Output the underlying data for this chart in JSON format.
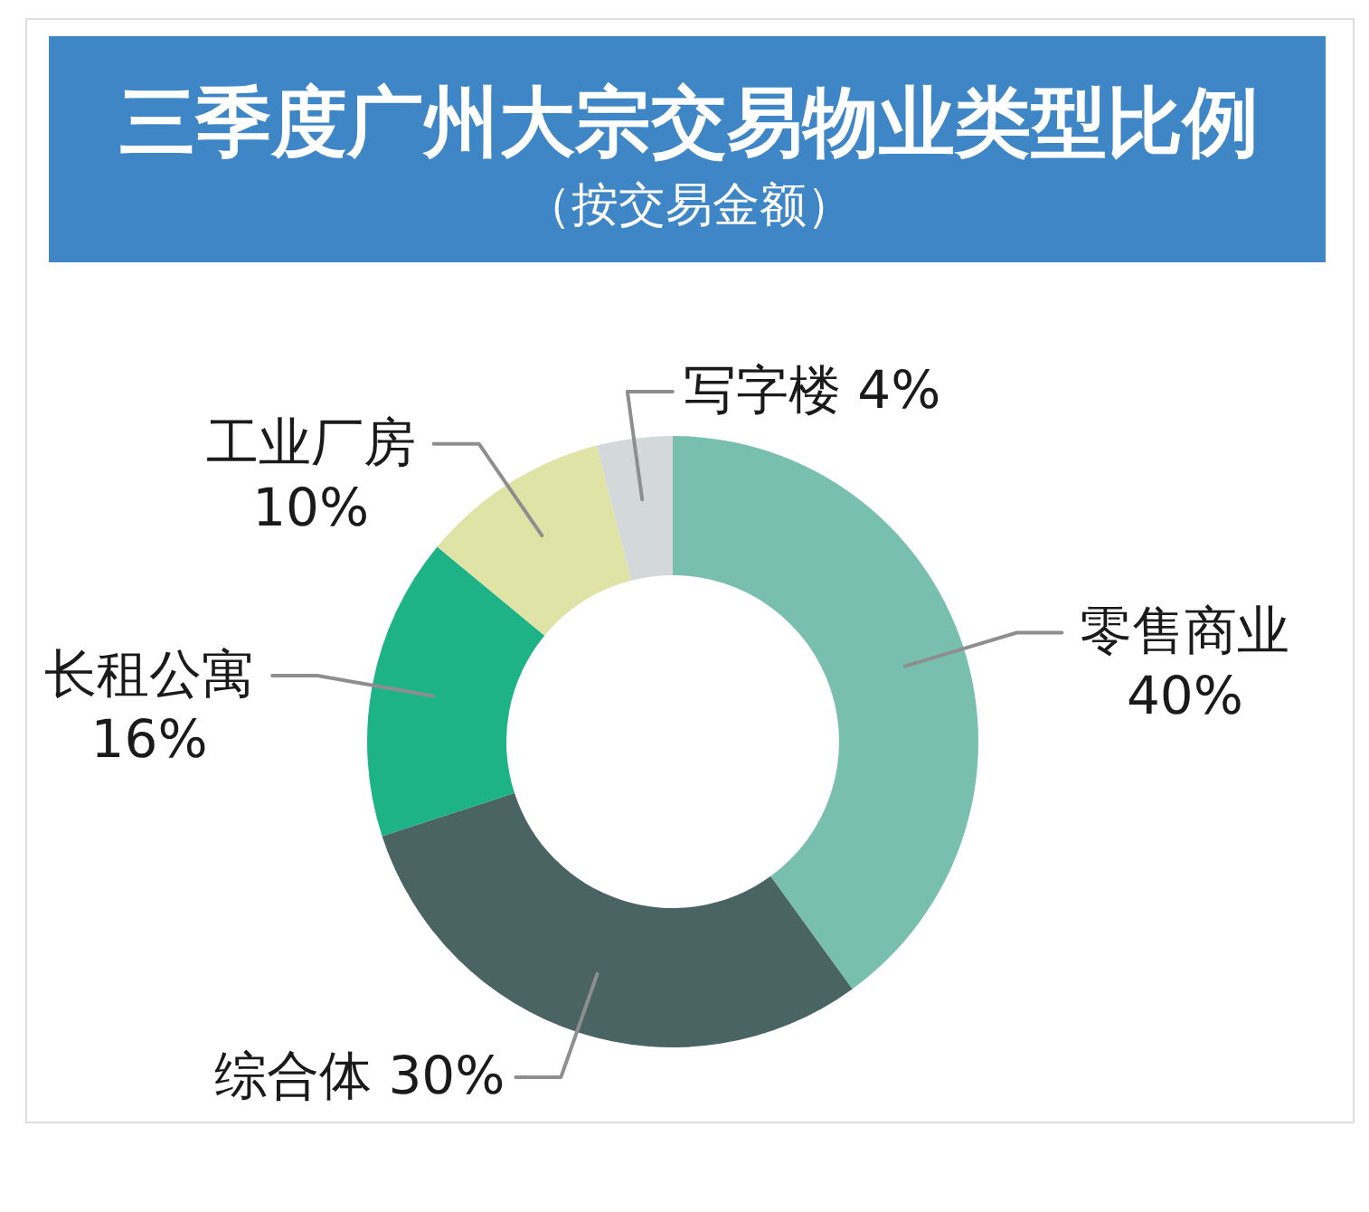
{
  "chart_data": {
    "type": "donut",
    "title": "三季度广州大宗交易物业类型比例",
    "subtitle": "（按交易金额）",
    "categories": [
      "零售商业",
      "综合体",
      "长租公寓",
      "工业厂房",
      "写字楼"
    ],
    "values": [
      40,
      30,
      16,
      10,
      4
    ],
    "colors": [
      "#78bfb0",
      "#4a6363",
      "#1db386",
      "#e0e3a6",
      "#d3d8da"
    ],
    "value_labels": [
      "40%",
      "30%",
      "16%",
      "10%",
      "4%"
    ]
  }
}
